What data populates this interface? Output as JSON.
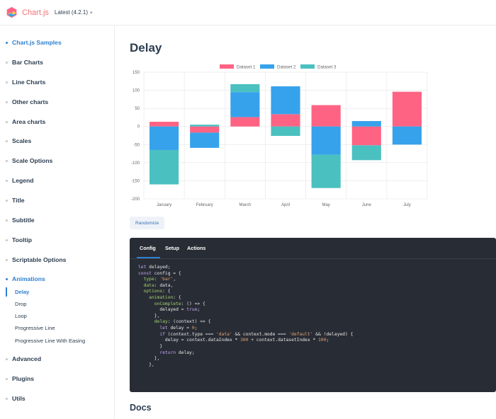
{
  "header": {
    "brand": "Chart.js",
    "version": "Latest (4.2.1)"
  },
  "sidebar": {
    "items": [
      {
        "label": "Chart.js Samples",
        "active": true
      },
      {
        "label": "Bar Charts"
      },
      {
        "label": "Line Charts"
      },
      {
        "label": "Other charts"
      },
      {
        "label": "Area charts"
      },
      {
        "label": "Scales"
      },
      {
        "label": "Scale Options"
      },
      {
        "label": "Legend"
      },
      {
        "label": "Title"
      },
      {
        "label": "Subtitle"
      },
      {
        "label": "Tooltip"
      },
      {
        "label": "Scriptable Options"
      },
      {
        "label": "Animations",
        "active": true
      },
      {
        "label": "Advanced"
      },
      {
        "label": "Plugins"
      },
      {
        "label": "Utils"
      }
    ],
    "subitems": [
      {
        "label": "Delay",
        "active": true
      },
      {
        "label": "Drop"
      },
      {
        "label": "Loop"
      },
      {
        "label": "Progressive Line"
      },
      {
        "label": "Progressive Line With Easing"
      }
    ]
  },
  "main": {
    "title": "Delay",
    "randomize_label": "Randomize",
    "tabs": [
      "Config",
      "Setup",
      "Actions"
    ],
    "docs_heading": "Docs"
  },
  "code": [
    "let delayed;",
    "const config = {",
    "  type: 'bar',",
    "  data: data,",
    "  options: {",
    "    animation: {",
    "      onComplete: () => {",
    "        delayed = true;",
    "      },",
    "      delay: (context) => {",
    "        let delay = 0;",
    "        if (context.type === 'data' && context.mode === 'default' && !delayed) {",
    "          delay = context.dataIndex * 300 + context.datasetIndex * 100;",
    "        }",
    "        return delay;",
    "      },",
    "    },"
  ],
  "chart_data": {
    "type": "bar",
    "stacked": true,
    "categories": [
      "January",
      "February",
      "March",
      "April",
      "May",
      "June",
      "July"
    ],
    "ylim": [
      -200,
      150
    ],
    "yticks": [
      150,
      100,
      50,
      0,
      -50,
      -100,
      -150,
      -200
    ],
    "legend_position": "top",
    "grid": true,
    "series": [
      {
        "name": "Dataset 1",
        "color": "#ff6384",
        "values": [
          13,
          -17,
          26,
          34,
          59,
          -52,
          96
        ]
      },
      {
        "name": "Dataset 2",
        "color": "#36a2eb",
        "values": [
          -65,
          -42,
          69,
          77,
          -78,
          15,
          -50
        ]
      },
      {
        "name": "Dataset 3",
        "color": "#4bc0c0",
        "values": [
          -95,
          5,
          22,
          -26,
          -92,
          -41,
          0
        ]
      }
    ]
  }
}
